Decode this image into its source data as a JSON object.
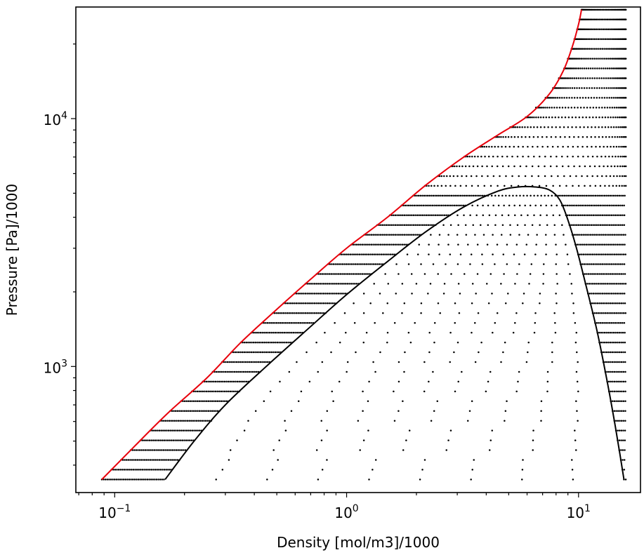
{
  "chart_data": {
    "type": "scatter",
    "xlabel": "Density [mol/m3]/1000",
    "ylabel": "Pressure [Pa]/1000",
    "xscale": "log",
    "yscale": "log",
    "xlim": [
      0.068,
      18.5
    ],
    "ylim": [
      310,
      28200
    ],
    "x_ticks": [
      {
        "value": 0.1,
        "base": "10",
        "exp": "−1"
      },
      {
        "value": 1,
        "base": "10",
        "exp": "0"
      },
      {
        "value": 10,
        "base": "10",
        "exp": "1"
      }
    ],
    "y_ticks": [
      {
        "value": 1000,
        "base": "10",
        "exp": "3"
      },
      {
        "value": 10000,
        "base": "10",
        "exp": "4"
      }
    ],
    "grid": false,
    "grid_domain": {
      "pressure_min": 350,
      "pressure_max": 27500,
      "density_max": 16.0,
      "pressure_levels": 49
    },
    "series": [
      {
        "color": "#e8000b",
        "kind": "line",
        "points": [
          [
            0.088,
            350
          ],
          [
            0.12,
            470
          ],
          [
            0.17,
            650
          ],
          [
            0.25,
            900
          ],
          [
            0.35,
            1250
          ],
          [
            0.5,
            1700
          ],
          [
            0.7,
            2250
          ],
          [
            1.0,
            3000
          ],
          [
            1.5,
            4000
          ],
          [
            2.2,
            5400
          ],
          [
            3.2,
            7000
          ],
          [
            4.5,
            8600
          ],
          [
            6.0,
            10200
          ],
          [
            7.5,
            12600
          ],
          [
            8.6,
            15600
          ],
          [
            9.4,
            19500
          ],
          [
            10.0,
            24000
          ],
          [
            10.3,
            27500
          ]
        ]
      },
      {
        "color": "#000000",
        "kind": "line",
        "points": [
          [
            0.165,
            350
          ],
          [
            0.22,
            500
          ],
          [
            0.3,
            700
          ],
          [
            0.45,
            1000
          ],
          [
            0.7,
            1450
          ],
          [
            1.0,
            1950
          ],
          [
            1.5,
            2650
          ],
          [
            2.2,
            3500
          ],
          [
            3.2,
            4400
          ],
          [
            4.5,
            5100
          ],
          [
            5.5,
            5300
          ],
          [
            6.5,
            5300
          ],
          [
            7.5,
            5150
          ],
          [
            8.3,
            4700
          ],
          [
            9.0,
            3900
          ],
          [
            9.8,
            3000
          ],
          [
            10.8,
            2100
          ],
          [
            12.0,
            1400
          ],
          [
            13.2,
            900
          ],
          [
            14.2,
            620
          ],
          [
            15.1,
            440
          ],
          [
            15.7,
            350
          ]
        ]
      },
      {
        "color": "#000000",
        "kind": "scatter",
        "description": "state points"
      }
    ]
  }
}
